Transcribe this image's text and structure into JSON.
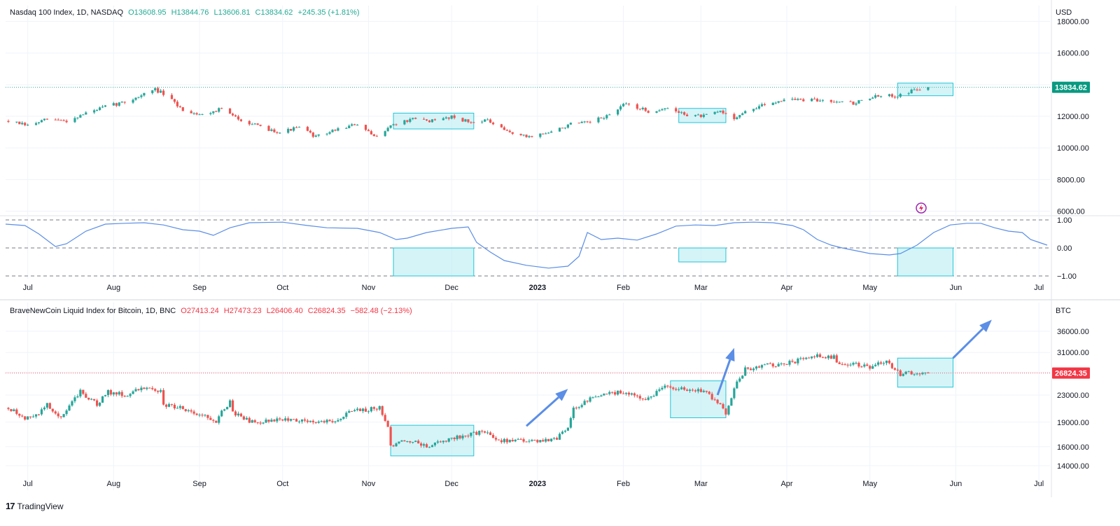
{
  "nasdaq": {
    "title": "Nasdaq 100 Index, 1D, NASDAQ",
    "open": "O13608.95",
    "high": "H13844.76",
    "low": "L13606.81",
    "close": "C13834.62",
    "change": "+245.35 (+1.81%)",
    "currency": "USD",
    "last_price": "13834.62",
    "last_value": 13834.62
  },
  "btc": {
    "title": "BraveNewCoin Liquid Index for Bitcoin, 1D, BNC",
    "open": "O27413.24",
    "high": "H27473.23",
    "low": "L26406.40",
    "close": "C26824.35",
    "change": "−582.48 (−2.13%)",
    "currency": "BTC",
    "last_price": "26824.35",
    "last_value": 26824.35
  },
  "time_axis": [
    "Jul",
    "Aug",
    "Sep",
    "Oct",
    "Nov",
    "Dec",
    "2023",
    "Feb",
    "Mar",
    "Apr",
    "May",
    "Jun",
    "Jul"
  ],
  "footer": {
    "brand": "TradingView"
  },
  "colors": {
    "up": "#26a69a",
    "down": "#ef5350",
    "highlight_fill": "#b2ebf2",
    "highlight_stroke": "#22c5d6",
    "oscillator": "#5b8ee6",
    "arrow": "#5b8ee6",
    "last_price_nasdaq": "#089981",
    "last_price_btc": "#f23645"
  },
  "chart_data": [
    {
      "type": "candlestick",
      "name": "Nasdaq 100 Index, 1D, NASDAQ",
      "y_scale": "linear",
      "ylim": [
        5800,
        19000
      ],
      "yticks": [
        6000,
        8000,
        10000,
        12000,
        14000,
        16000,
        18000
      ],
      "ytick_labels": [
        "6000.00",
        "8000.00",
        "10000.00",
        "12000.00",
        "14000.00",
        "16000.00",
        "18000.00"
      ],
      "xlim": [
        "2022-06-23",
        "2023-07-05"
      ],
      "anchors": [
        [
          "2022-06-24",
          11700
        ],
        [
          "2022-07-01",
          11400
        ],
        [
          "2022-07-08",
          11800
        ],
        [
          "2022-07-15",
          11700
        ],
        [
          "2022-07-22",
          12200
        ],
        [
          "2022-07-29",
          12600
        ],
        [
          "2022-08-05",
          12900
        ],
        [
          "2022-08-12",
          13400
        ],
        [
          "2022-08-16",
          13700
        ],
        [
          "2022-08-19",
          13400
        ],
        [
          "2022-08-26",
          12400
        ],
        [
          "2022-09-02",
          12100
        ],
        [
          "2022-09-09",
          12500
        ],
        [
          "2022-09-13",
          12000
        ],
        [
          "2022-09-16",
          11800
        ],
        [
          "2022-09-23",
          11300
        ],
        [
          "2022-09-30",
          11000
        ],
        [
          "2022-10-07",
          11300
        ],
        [
          "2022-10-13",
          10700
        ],
        [
          "2022-10-21",
          11200
        ],
        [
          "2022-10-28",
          11500
        ],
        [
          "2022-11-03",
          10700
        ],
        [
          "2022-11-10",
          11500
        ],
        [
          "2022-11-17",
          11800
        ],
        [
          "2022-11-25",
          11700
        ],
        [
          "2022-12-01",
          12000
        ],
        [
          "2022-12-08",
          11600
        ],
        [
          "2022-12-13",
          11800
        ],
        [
          "2022-12-20",
          11100
        ],
        [
          "2022-12-28",
          10700
        ],
        [
          "2023-01-06",
          11000
        ],
        [
          "2023-01-13",
          11500
        ],
        [
          "2023-01-20",
          11600
        ],
        [
          "2023-01-27",
          12100
        ],
        [
          "2023-02-02",
          12800
        ],
        [
          "2023-02-10",
          12300
        ],
        [
          "2023-02-16",
          12500
        ],
        [
          "2023-02-24",
          12100
        ],
        [
          "2023-03-02",
          12000
        ],
        [
          "2023-03-08",
          12300
        ],
        [
          "2023-03-13",
          11900
        ],
        [
          "2023-03-20",
          12500
        ],
        [
          "2023-03-31",
          13100
        ],
        [
          "2023-04-10",
          13000
        ],
        [
          "2023-04-21",
          13000
        ],
        [
          "2023-04-25",
          12800
        ],
        [
          "2023-05-01",
          13200
        ],
        [
          "2023-05-10",
          13300
        ],
        [
          "2023-05-19",
          13750
        ],
        [
          "2023-05-22",
          13834.62
        ]
      ],
      "highlight_boxes": [
        {
          "x": [
            "2022-11-10",
            "2022-12-09"
          ],
          "y": [
            11200,
            12200
          ]
        },
        {
          "x": [
            "2023-02-21",
            "2023-03-10"
          ],
          "y": [
            11600,
            12500
          ]
        },
        {
          "x": [
            "2023-05-11",
            "2023-05-31"
          ],
          "y": [
            13300,
            14100
          ]
        }
      ],
      "last_price_line": 13834.62
    },
    {
      "type": "line",
      "name": "oscillator",
      "ylim": [
        -1.1,
        1.1
      ],
      "yticks": [
        1.0,
        0.0,
        -1.0
      ],
      "ytick_labels": [
        "1.00",
        "0.00",
        "−1.00"
      ],
      "reference_lines": [
        1.0,
        0.0,
        -1.0
      ],
      "points": [
        [
          "2022-06-23",
          0.85
        ],
        [
          "2022-06-30",
          0.8
        ],
        [
          "2022-07-05",
          0.5
        ],
        [
          "2022-07-11",
          0.05
        ],
        [
          "2022-07-15",
          0.15
        ],
        [
          "2022-07-22",
          0.6
        ],
        [
          "2022-07-29",
          0.85
        ],
        [
          "2022-08-05",
          0.88
        ],
        [
          "2022-08-12",
          0.9
        ],
        [
          "2022-08-19",
          0.82
        ],
        [
          "2022-08-26",
          0.65
        ],
        [
          "2022-09-01",
          0.6
        ],
        [
          "2022-09-06",
          0.45
        ],
        [
          "2022-09-12",
          0.72
        ],
        [
          "2022-09-19",
          0.9
        ],
        [
          "2022-10-01",
          0.92
        ],
        [
          "2022-10-10",
          0.8
        ],
        [
          "2022-10-17",
          0.72
        ],
        [
          "2022-10-28",
          0.7
        ],
        [
          "2022-11-05",
          0.55
        ],
        [
          "2022-11-11",
          0.3
        ],
        [
          "2022-11-15",
          0.35
        ],
        [
          "2022-11-22",
          0.55
        ],
        [
          "2022-12-01",
          0.7
        ],
        [
          "2022-12-07",
          0.75
        ],
        [
          "2022-12-10",
          0.2
        ],
        [
          "2022-12-15",
          -0.15
        ],
        [
          "2022-12-20",
          -0.45
        ],
        [
          "2022-12-28",
          -0.62
        ],
        [
          "2023-01-05",
          -0.72
        ],
        [
          "2023-01-12",
          -0.65
        ],
        [
          "2023-01-16",
          -0.3
        ],
        [
          "2023-01-19",
          0.55
        ],
        [
          "2023-01-24",
          0.3
        ],
        [
          "2023-01-30",
          0.35
        ],
        [
          "2023-02-06",
          0.28
        ],
        [
          "2023-02-13",
          0.5
        ],
        [
          "2023-02-20",
          0.78
        ],
        [
          "2023-02-27",
          0.82
        ],
        [
          "2023-03-06",
          0.8
        ],
        [
          "2023-03-13",
          0.9
        ],
        [
          "2023-03-20",
          0.92
        ],
        [
          "2023-03-27",
          0.9
        ],
        [
          "2023-04-03",
          0.8
        ],
        [
          "2023-04-07",
          0.65
        ],
        [
          "2023-04-12",
          0.3
        ],
        [
          "2023-04-17",
          0.1
        ],
        [
          "2023-04-21",
          0.0
        ],
        [
          "2023-04-26",
          -0.1
        ],
        [
          "2023-05-01",
          -0.2
        ],
        [
          "2023-05-08",
          -0.25
        ],
        [
          "2023-05-12",
          -0.2
        ],
        [
          "2023-05-18",
          0.1
        ],
        [
          "2023-05-24",
          0.55
        ],
        [
          "2023-05-30",
          0.82
        ],
        [
          "2023-06-05",
          0.88
        ],
        [
          "2023-06-10",
          0.88
        ],
        [
          "2023-06-15",
          0.72
        ],
        [
          "2023-06-20",
          0.6
        ],
        [
          "2023-06-25",
          0.55
        ],
        [
          "2023-06-28",
          0.3
        ],
        [
          "2023-07-01",
          0.2
        ],
        [
          "2023-07-04",
          0.1
        ]
      ],
      "highlight_boxes": [
        {
          "x": [
            "2022-11-10",
            "2022-12-09"
          ],
          "y": [
            -1.0,
            0.0
          ]
        },
        {
          "x": [
            "2023-02-21",
            "2023-03-10"
          ],
          "y": [
            -0.5,
            0.0
          ]
        },
        {
          "x": [
            "2023-05-11",
            "2023-05-31"
          ],
          "y": [
            -1.0,
            0.0
          ]
        }
      ]
    },
    {
      "type": "candlestick",
      "name": "BraveNewCoin Liquid Index for Bitcoin, 1D, BNC",
      "y_scale": "log",
      "ylim": [
        13000,
        44000
      ],
      "yticks": [
        14000,
        16000,
        19000,
        23000,
        27000,
        31000,
        36000
      ],
      "ytick_labels": [
        "14000.00",
        "16000.00",
        "19000.00",
        "23000.00",
        "27000.00",
        "31000.00",
        "36000.00"
      ],
      "xlim": [
        "2022-06-23",
        "2023-07-05"
      ],
      "anchors": [
        [
          "2022-06-24",
          21000
        ],
        [
          "2022-06-30",
          19500
        ],
        [
          "2022-07-04",
          19800
        ],
        [
          "2022-07-08",
          21500
        ],
        [
          "2022-07-13",
          19500
        ],
        [
          "2022-07-20",
          23500
        ],
        [
          "2022-07-26",
          21500
        ],
        [
          "2022-07-30",
          23500
        ],
        [
          "2022-08-05",
          23000
        ],
        [
          "2022-08-14",
          24500
        ],
        [
          "2022-08-18",
          23500
        ],
        [
          "2022-08-19",
          21500
        ],
        [
          "2022-08-26",
          21000
        ],
        [
          "2022-09-01",
          20000
        ],
        [
          "2022-09-07",
          19200
        ],
        [
          "2022-09-12",
          22000
        ],
        [
          "2022-09-13",
          20300
        ],
        [
          "2022-09-20",
          19000
        ],
        [
          "2022-10-01",
          19400
        ],
        [
          "2022-10-13",
          19100
        ],
        [
          "2022-10-20",
          19200
        ],
        [
          "2022-10-26",
          20500
        ],
        [
          "2022-11-05",
          21000
        ],
        [
          "2022-11-08",
          18500
        ],
        [
          "2022-11-09",
          16000
        ],
        [
          "2022-11-15",
          16800
        ],
        [
          "2022-11-22",
          16000
        ],
        [
          "2022-12-01",
          17000
        ],
        [
          "2022-12-13",
          17800
        ],
        [
          "2022-12-17",
          16800
        ],
        [
          "2022-12-31",
          16550
        ],
        [
          "2023-01-08",
          17000
        ],
        [
          "2023-01-12",
          18500
        ],
        [
          "2023-01-14",
          20800
        ],
        [
          "2023-01-22",
          22800
        ],
        [
          "2023-02-02",
          23600
        ],
        [
          "2023-02-09",
          22000
        ],
        [
          "2023-02-16",
          24500
        ],
        [
          "2023-02-22",
          24000
        ],
        [
          "2023-03-02",
          23500
        ],
        [
          "2023-03-07",
          22000
        ],
        [
          "2023-03-10",
          20000
        ],
        [
          "2023-03-13",
          24200
        ],
        [
          "2023-03-17",
          27500
        ],
        [
          "2023-03-22",
          28200
        ],
        [
          "2023-03-31",
          28500
        ],
        [
          "2023-04-11",
          30200
        ],
        [
          "2023-04-18",
          30000
        ],
        [
          "2023-04-20",
          28300
        ],
        [
          "2023-04-26",
          28500
        ],
        [
          "2023-05-01",
          28000
        ],
        [
          "2023-05-07",
          29000
        ],
        [
          "2023-05-12",
          26500
        ],
        [
          "2023-05-17",
          27000
        ],
        [
          "2023-05-22",
          26824.35
        ]
      ],
      "highlight_boxes": [
        {
          "x": [
            "2022-11-09",
            "2022-12-09"
          ],
          "y": [
            15000,
            18600
          ]
        },
        {
          "x": [
            "2023-02-18",
            "2023-03-10"
          ],
          "y": [
            19600,
            25400
          ]
        },
        {
          "x": [
            "2023-05-11",
            "2023-05-31"
          ],
          "y": [
            24300,
            29800
          ]
        }
      ],
      "arrows": [
        {
          "from": [
            "2022-12-28",
            18500
          ],
          "to": [
            "2023-01-12",
            24000
          ]
        },
        {
          "from": [
            "2023-03-07",
            23000
          ],
          "to": [
            "2023-03-13",
            32000
          ]
        },
        {
          "from": [
            "2023-05-31",
            29800
          ],
          "to": [
            "2023-06-14",
            39000
          ]
        }
      ],
      "last_price_line": 26824.35
    }
  ]
}
